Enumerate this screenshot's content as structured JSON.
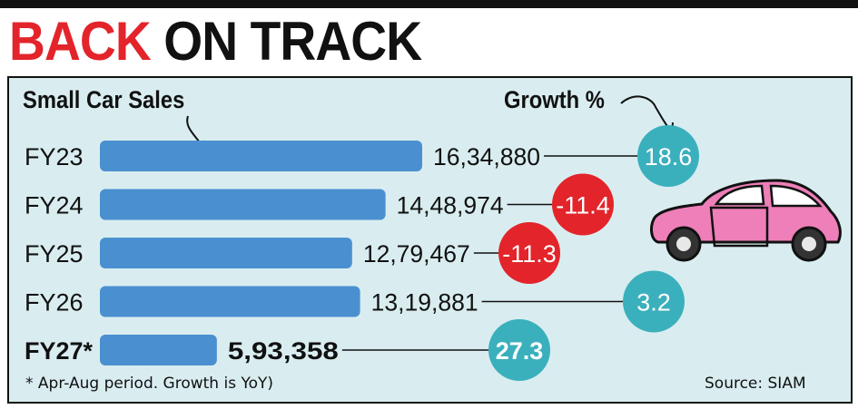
{
  "headline": {
    "part1": "BACK",
    "part2": "ON TRACK"
  },
  "colors": {
    "bar": "#4a90d0",
    "positive_bubble": "#3bb0bd",
    "negative_bubble": "#e3242b",
    "panel_background": "#d9edf0",
    "headline_accent": "#e3242b",
    "car_body": "#ee7fb8"
  },
  "chart_data": {
    "type": "bar",
    "orientation": "horizontal",
    "title": "BACK ON TRACK",
    "series_label": "Small Car Sales",
    "growth_label": "Growth %",
    "categories": [
      "FY23",
      "FY24",
      "FY25",
      "FY26",
      "FY27*"
    ],
    "value_labels": [
      "16,34,880",
      "14,48,974",
      "12,79,467",
      "13,19,881",
      "5,93,358"
    ],
    "values": [
      1634880,
      1448974,
      1279467,
      1319881,
      593358
    ],
    "growth": [
      18.6,
      -11.4,
      -11.3,
      3.2,
      27.3
    ],
    "growth_labels": [
      "18.6",
      "-11.4",
      "-11.3",
      "3.2",
      "27.3"
    ],
    "highlight_last": true,
    "footnote": "* Apr-Aug period. Growth is YoY)",
    "source": "Source: SIAM"
  },
  "illustration": {
    "icon": "pink-car-icon"
  }
}
